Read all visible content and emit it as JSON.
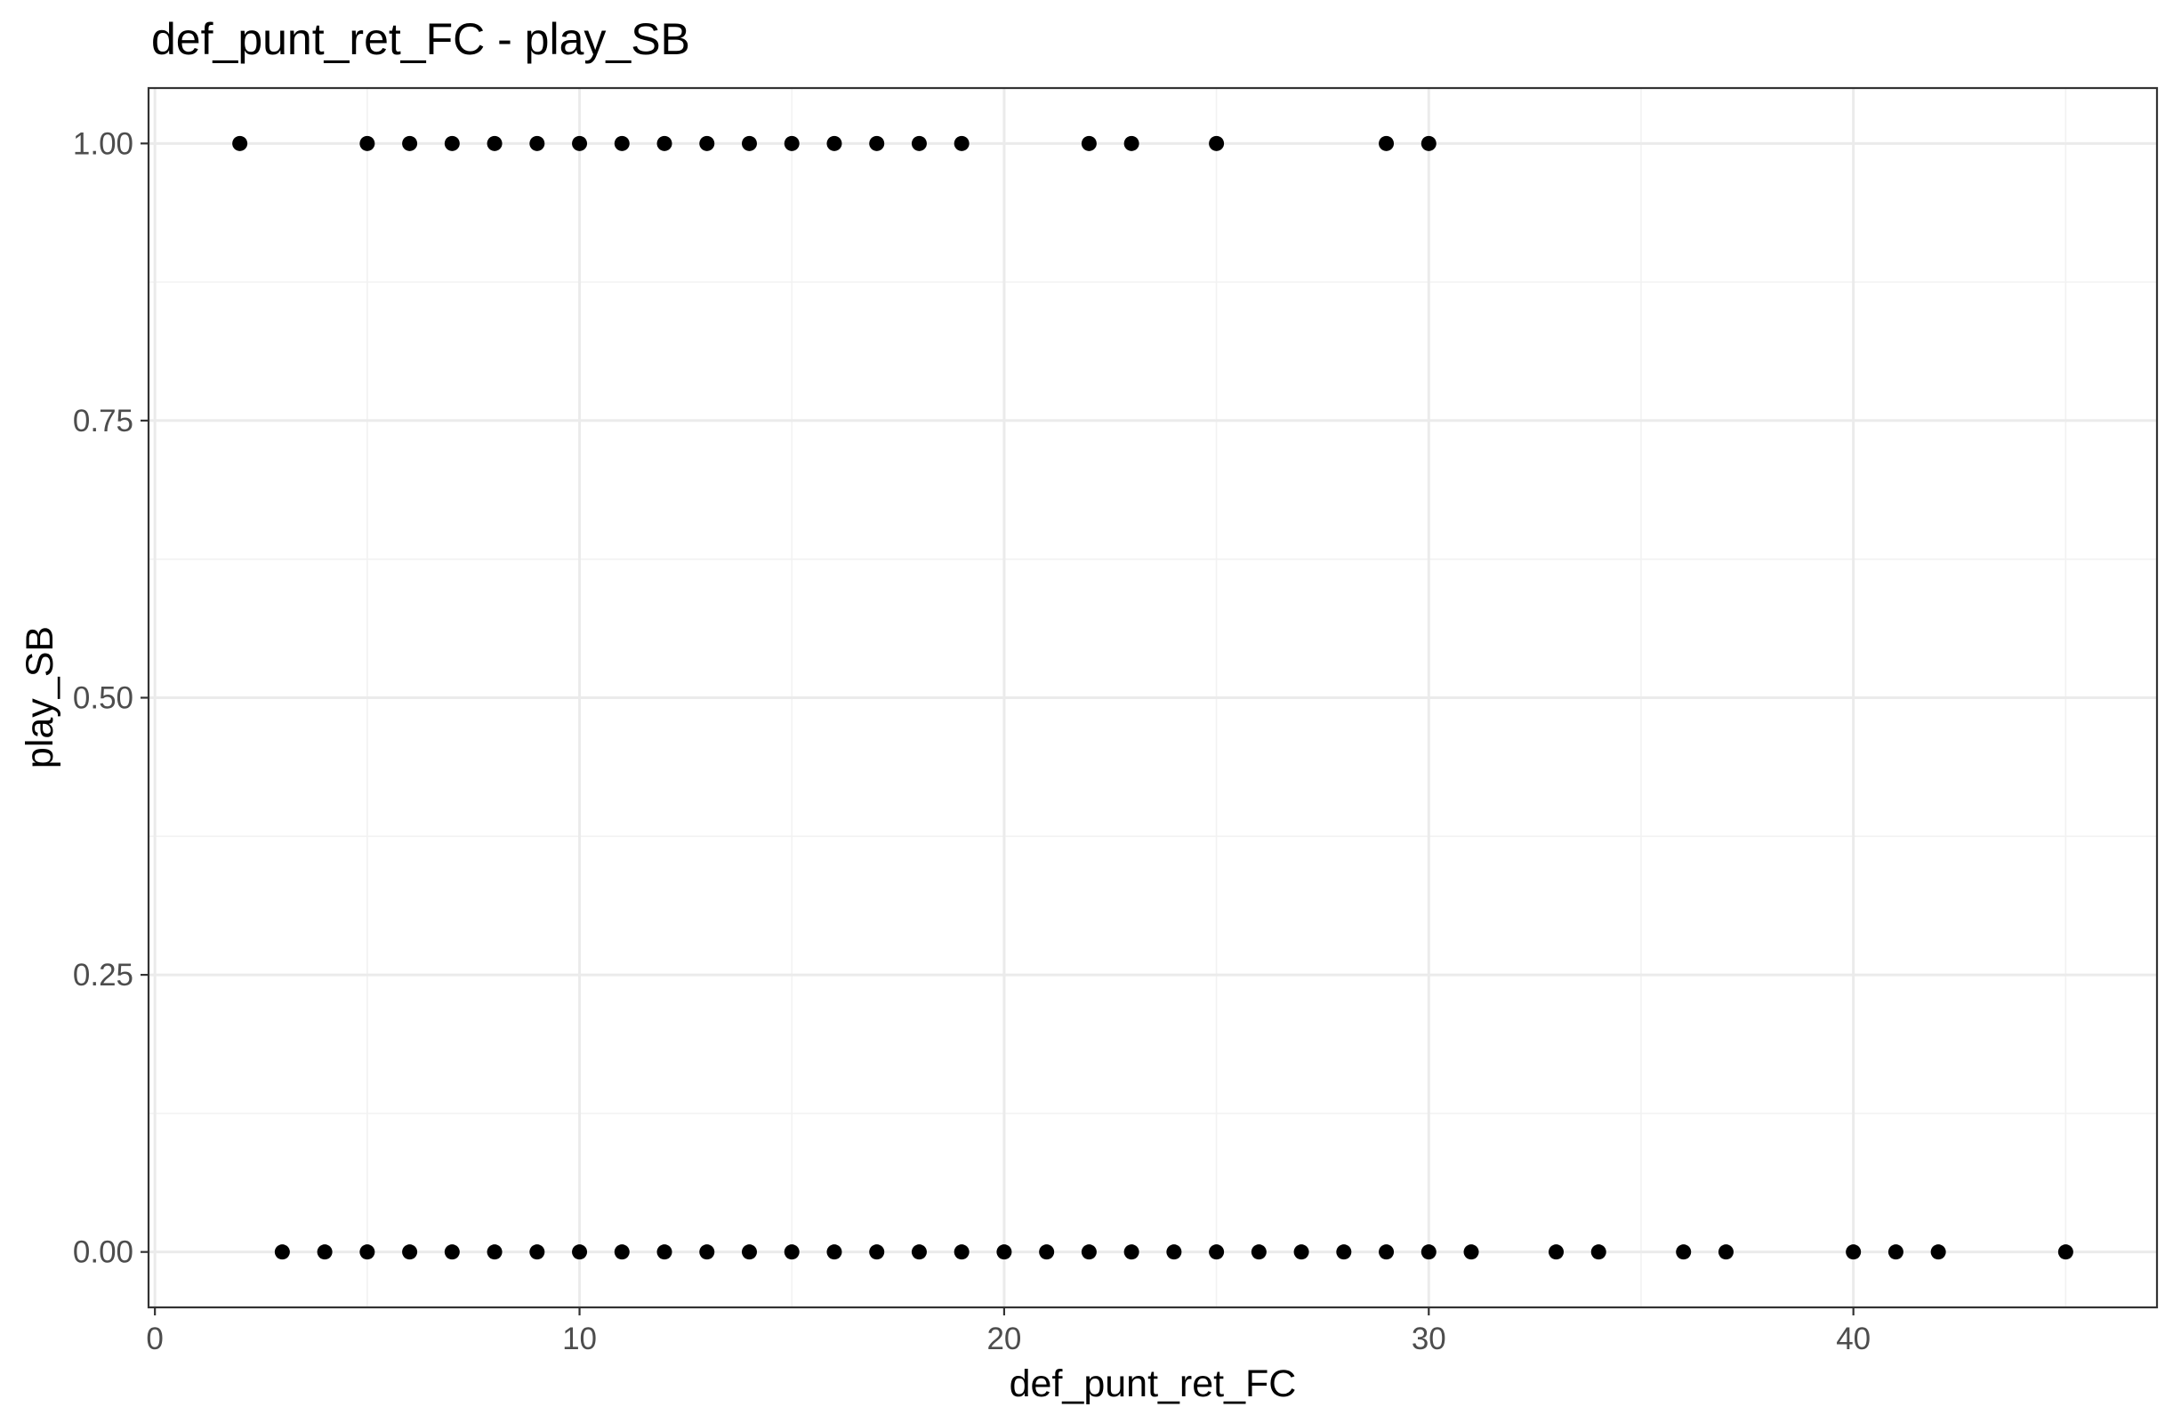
{
  "chart_data": {
    "type": "scatter",
    "title": "def_punt_ret_FC - play_SB",
    "xlabel": "def_punt_ret_FC",
    "ylabel": "play_SB",
    "xlim": [
      -0.15,
      47.15
    ],
    "ylim": [
      -0.05,
      1.05
    ],
    "x_ticks": [
      0,
      10,
      20,
      30,
      40
    ],
    "x_tick_labels": [
      "0",
      "10",
      "20",
      "30",
      "40"
    ],
    "y_ticks": [
      0,
      0.25,
      0.5,
      0.75,
      1
    ],
    "y_tick_labels": [
      "0.00",
      "0.25",
      "0.50",
      "0.75",
      "1.00"
    ],
    "grid": true,
    "legend": "none",
    "point_color": "#000000",
    "series": [
      {
        "x": [
          2,
          5,
          6,
          7,
          8,
          9,
          10,
          11,
          12,
          13,
          14,
          15,
          16,
          17,
          18,
          19,
          22,
          23,
          25,
          29,
          30
        ],
        "y": [
          1,
          1,
          1,
          1,
          1,
          1,
          1,
          1,
          1,
          1,
          1,
          1,
          1,
          1,
          1,
          1,
          1,
          1,
          1,
          1,
          1
        ]
      },
      {
        "x": [
          3,
          4,
          5,
          6,
          7,
          8,
          9,
          10,
          11,
          12,
          13,
          14,
          15,
          16,
          17,
          18,
          19,
          20,
          21,
          22,
          23,
          24,
          25,
          26,
          27,
          28,
          29,
          30,
          31,
          33,
          34,
          36,
          37,
          40,
          41,
          42,
          45
        ],
        "y": [
          0,
          0,
          0,
          0,
          0,
          0,
          0,
          0,
          0,
          0,
          0,
          0,
          0,
          0,
          0,
          0,
          0,
          0,
          0,
          0,
          0,
          0,
          0,
          0,
          0,
          0,
          0,
          0,
          0,
          0,
          0,
          0,
          0,
          0,
          0,
          0,
          0
        ]
      }
    ]
  }
}
